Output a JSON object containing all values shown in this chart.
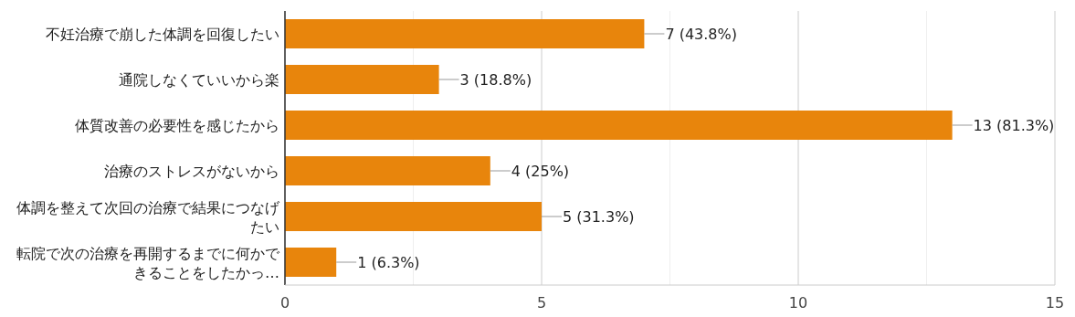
{
  "chart_data": {
    "type": "bar",
    "orientation": "horizontal",
    "categories": [
      "不妊治療で崩した体調を回復したい",
      "通院しなくていいから楽",
      "体質改善の必要性を感じたから",
      "治療のストレスがないから",
      "体調を整えて次回の治療で結果につなげたい",
      "転院で次の治療を再開するまでに何かできることをしたかっ…"
    ],
    "values": [
      7,
      3,
      13,
      4,
      5,
      1
    ],
    "value_labels": [
      "7 (43.8%)",
      "3 (18.8%)",
      "13 (81.3%)",
      "4 (25%)",
      "5 (31.3%)",
      "1 (6.3%)"
    ],
    "color": "#e8850c",
    "xlim": [
      0,
      15
    ],
    "xticks": [
      0,
      {
        "value": 2.5,
        "label": null
      },
      5,
      {
        "value": 7.5,
        "label": null
      },
      10,
      {
        "value": 12.5,
        "label": null
      },
      15
    ],
    "grid": "x"
  }
}
